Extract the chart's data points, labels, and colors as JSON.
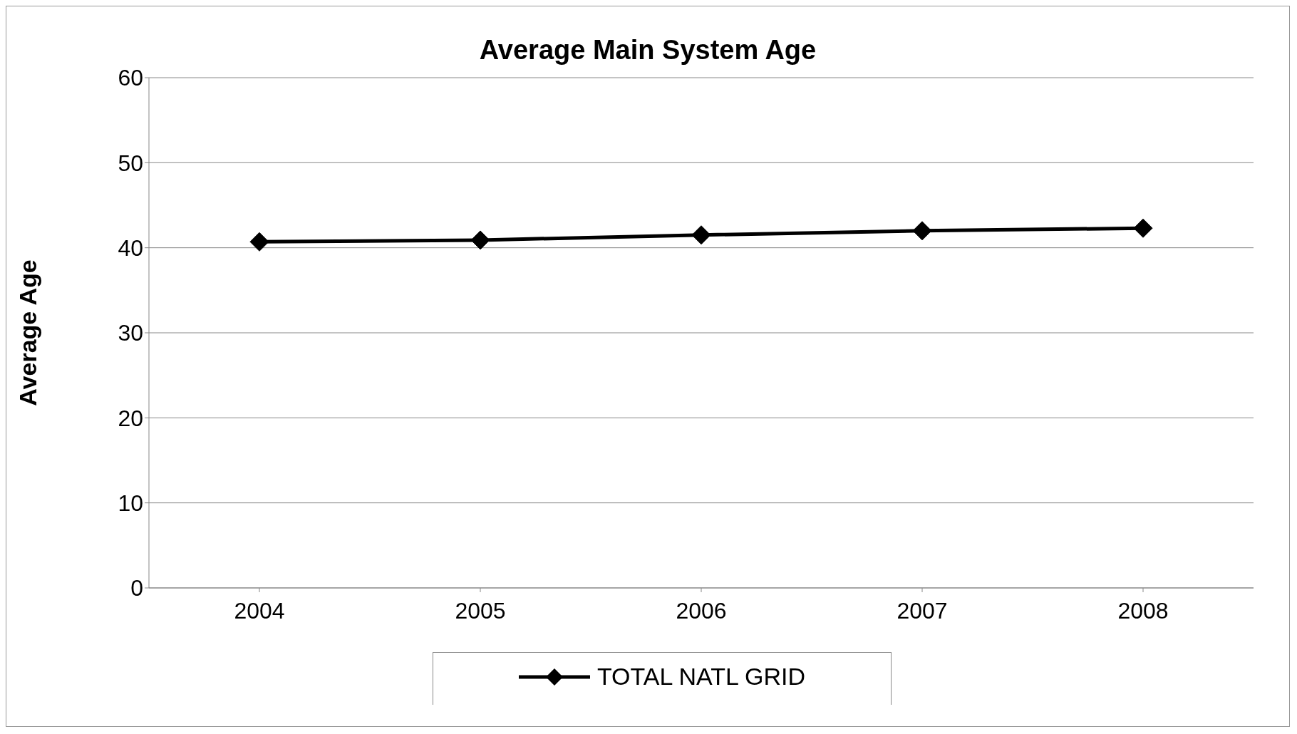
{
  "chart_data": {
    "type": "line",
    "title": "Average Main System Age",
    "ylabel": "Average Age",
    "categories": [
      "2004",
      "2005",
      "2006",
      "2007",
      "2008"
    ],
    "series": [
      {
        "name": "TOTAL NATL GRID",
        "color": "#000000",
        "values": [
          40.7,
          40.9,
          41.5,
          42.0,
          42.3
        ]
      }
    ],
    "ylim": [
      0,
      60
    ],
    "yticks": [
      0,
      10,
      20,
      30,
      40,
      50,
      60
    ],
    "grid": "y",
    "legend": "bottom",
    "marker": "diamond",
    "line_style": "solid"
  }
}
